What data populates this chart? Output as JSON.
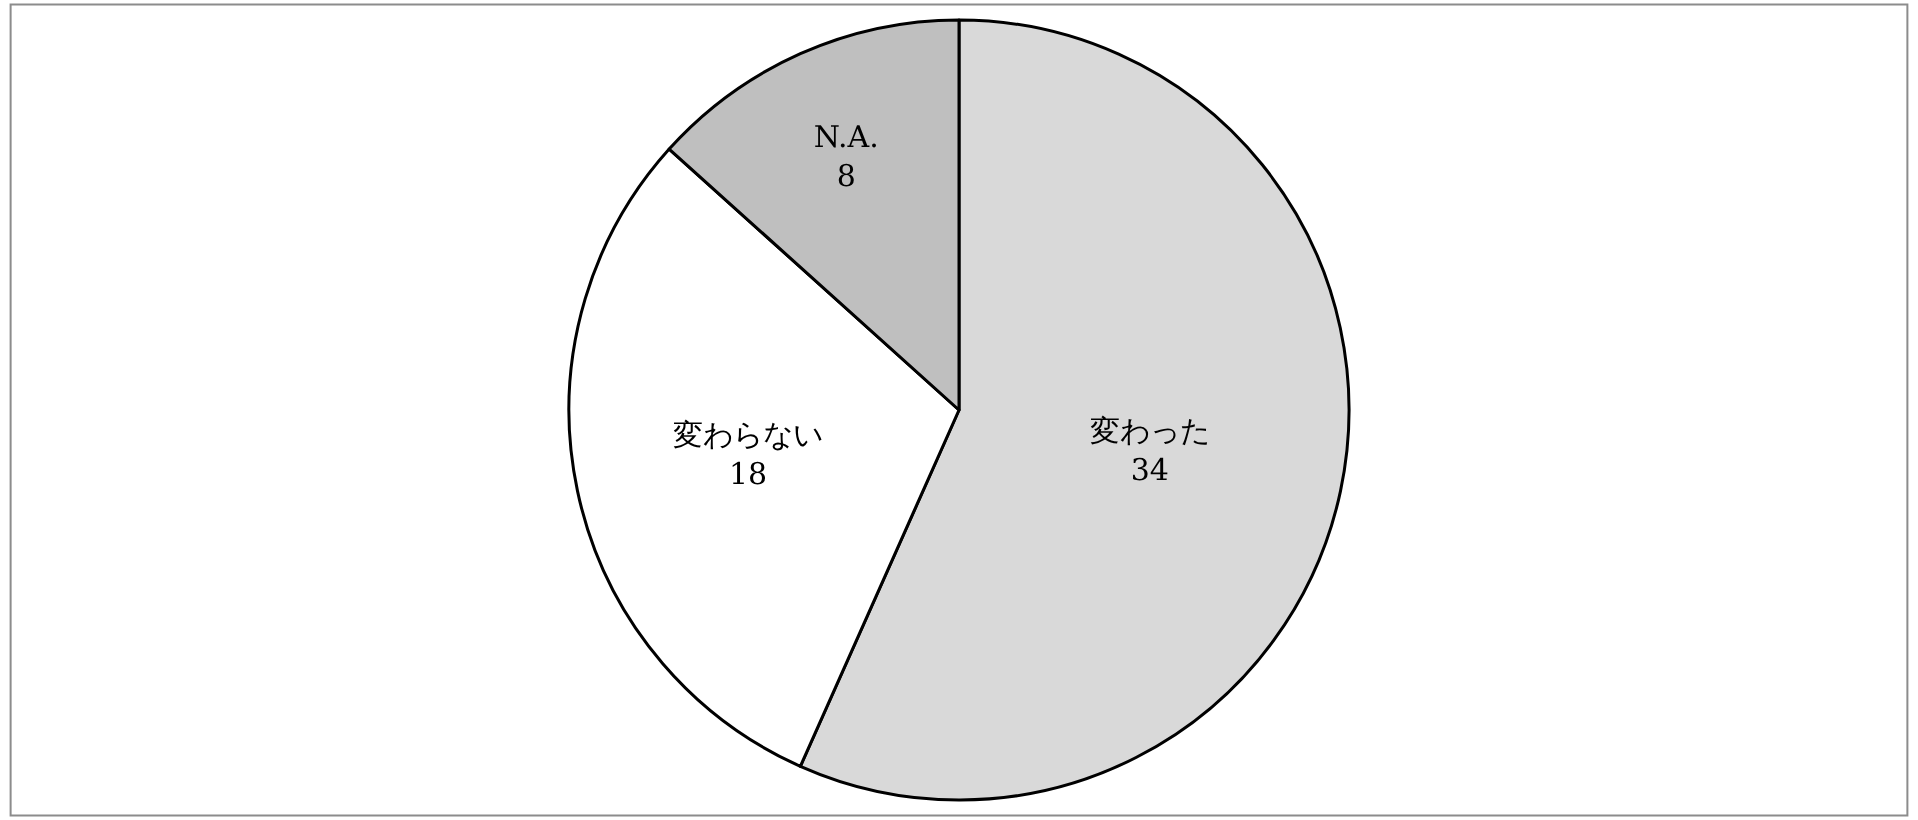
{
  "chart_data": {
    "type": "pie",
    "categories": [
      "変わった",
      "変わらない",
      "N.A."
    ],
    "values": [
      34,
      18,
      8
    ],
    "data_labels": true,
    "colors": [
      "#d9d9d9",
      "#ffffff",
      "#bfbfbf"
    ],
    "legend": false
  }
}
